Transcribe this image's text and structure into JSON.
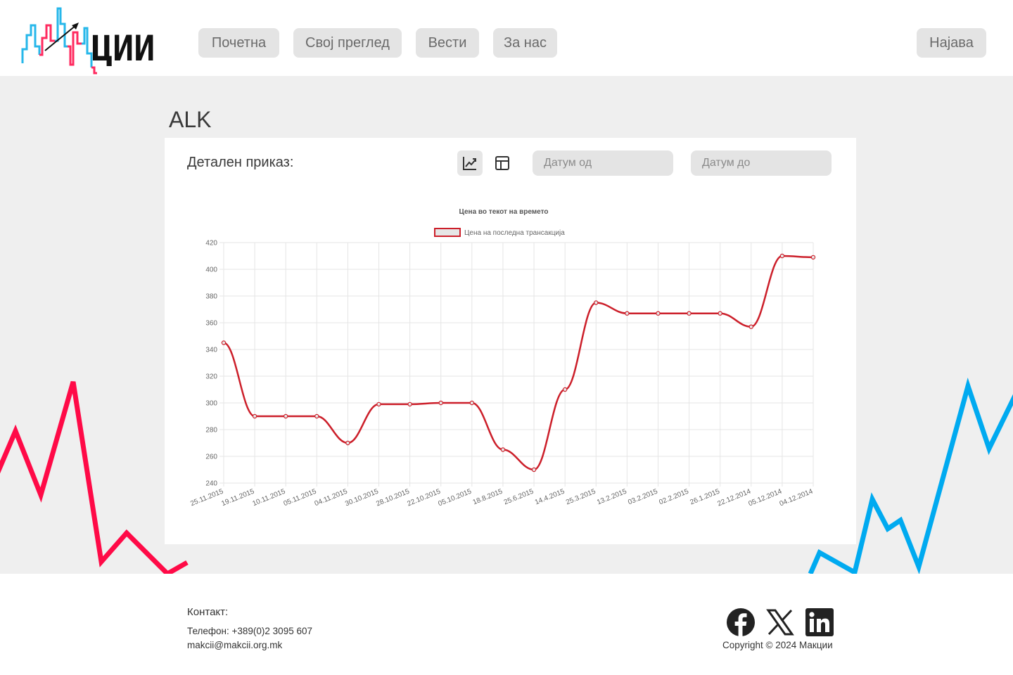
{
  "header": {
    "logo_text": "ЦИИ",
    "nav": [
      "Почетна",
      "Свој преглед",
      "Вести",
      "За нас"
    ],
    "login_label": "Најава"
  },
  "page": {
    "title": "ALK",
    "detail_label": "Детален приказ:",
    "date_from_placeholder": "Датум од",
    "date_to_placeholder": "Датум до",
    "view_icons": [
      "line-chart-icon",
      "table-icon"
    ]
  },
  "chart_data": {
    "type": "line",
    "title": "Цена во текот на времето",
    "legend": "Цена на последна трансакција",
    "categories": [
      "25.11.2015",
      "19.11.2015",
      "10.11.2015",
      "05.11.2015",
      "04.11.2015",
      "30.10.2015",
      "28.10.2015",
      "22.10.2015",
      "05.10.2015",
      "18.8.2015",
      "25.6.2015",
      "14.4.2015",
      "25.3.2015",
      "13.2.2015",
      "03.2.2015",
      "02.2.2015",
      "26.1.2015",
      "22.12.2014",
      "05.12.2014",
      "04.12.2014"
    ],
    "series": [
      {
        "name": "Цена на последна трансакција",
        "values": [
          345,
          290,
          290,
          290,
          270,
          299,
          299,
          300,
          300,
          265,
          250,
          310,
          375,
          367,
          367,
          367,
          367,
          357,
          410,
          409
        ]
      }
    ],
    "ylim": [
      240,
      420
    ],
    "yticks": [
      240,
      260,
      280,
      300,
      320,
      340,
      360,
      380,
      400,
      420
    ],
    "grid": true,
    "legend_position": "top",
    "color": "#cc1f2a"
  },
  "footer": {
    "contact_title": "Контакт:",
    "phone": "Телефон: +389(0)2 3095 607",
    "email": "makcii@makcii.org.mk",
    "copyright": "Copyright © 2024 Макции",
    "social_icons": [
      "facebook-icon",
      "x-icon",
      "linkedin-icon"
    ]
  },
  "colors": {
    "accent_red": "#ff0a47",
    "accent_blue": "#00aaf0",
    "line_red": "#cc1f2a"
  }
}
